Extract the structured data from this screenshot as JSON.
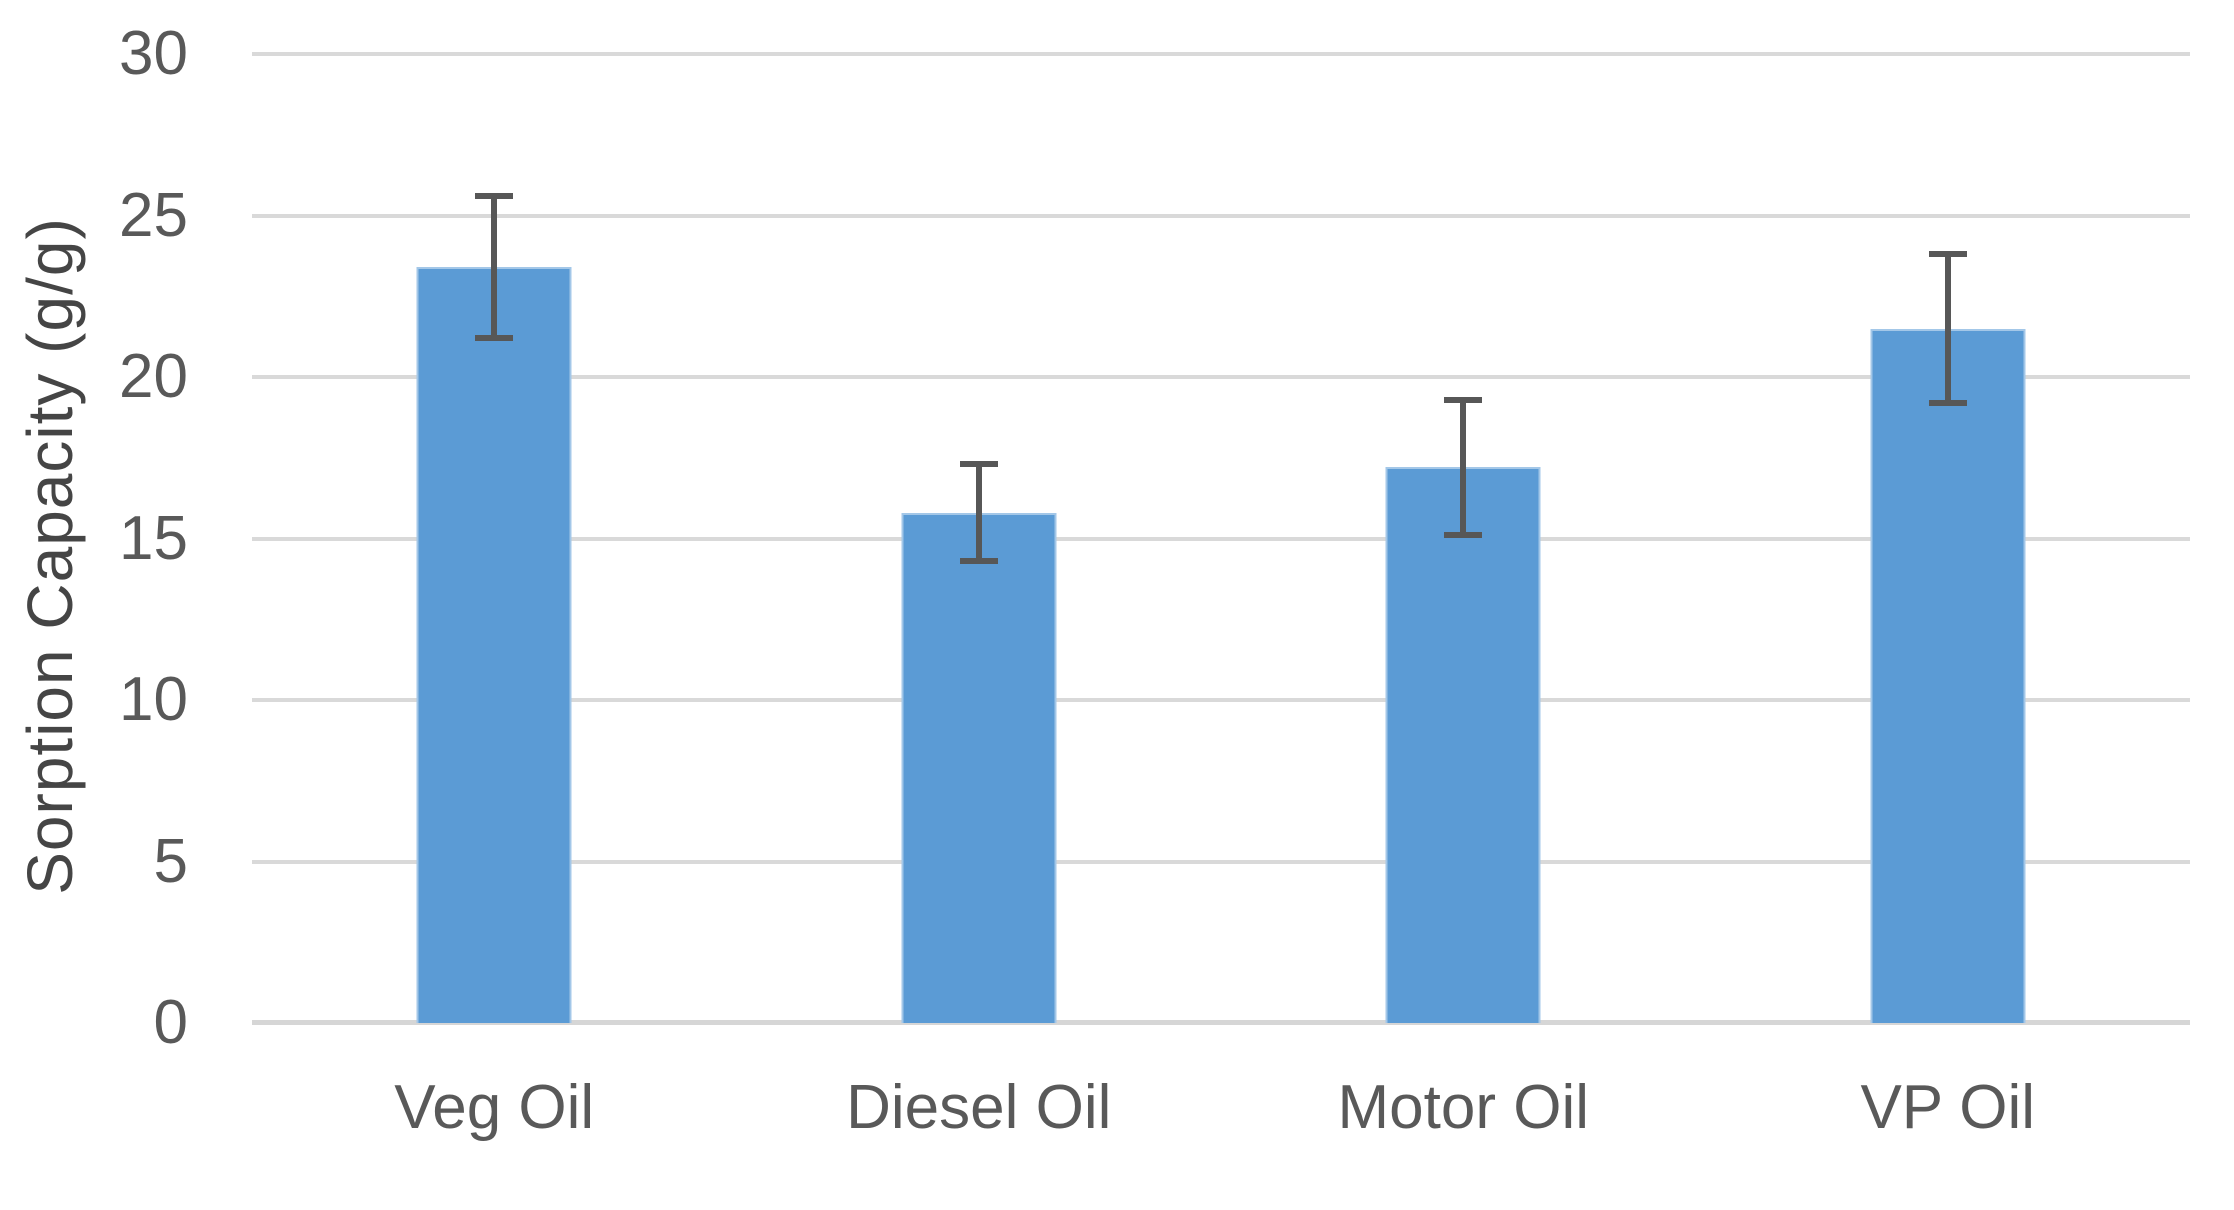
{
  "chart_data": {
    "type": "bar",
    "categories": [
      "Veg Oil",
      "Diesel Oil",
      "Motor Oil",
      "VP Oil"
    ],
    "values": [
      23.4,
      15.8,
      17.2,
      21.5
    ],
    "error_bars": [
      2.2,
      1.5,
      2.1,
      2.3
    ],
    "ylabel": "Sorption Capacity (g/g)",
    "xlabel": "",
    "ylim": [
      0,
      30
    ],
    "yticks": [
      0,
      5,
      10,
      15,
      20,
      25,
      30
    ],
    "grid": "horizontal-only",
    "legend": "none",
    "colors": {
      "bar_fill": "#5b9bd5",
      "bar_edge": "#a3c7e8",
      "error_bar": "#575757",
      "gridline": "#d9d9d9",
      "axis_line": "#d6d6d6",
      "tick_label": "#595959",
      "category_label": "#595959",
      "axis_title": "#454545"
    }
  }
}
